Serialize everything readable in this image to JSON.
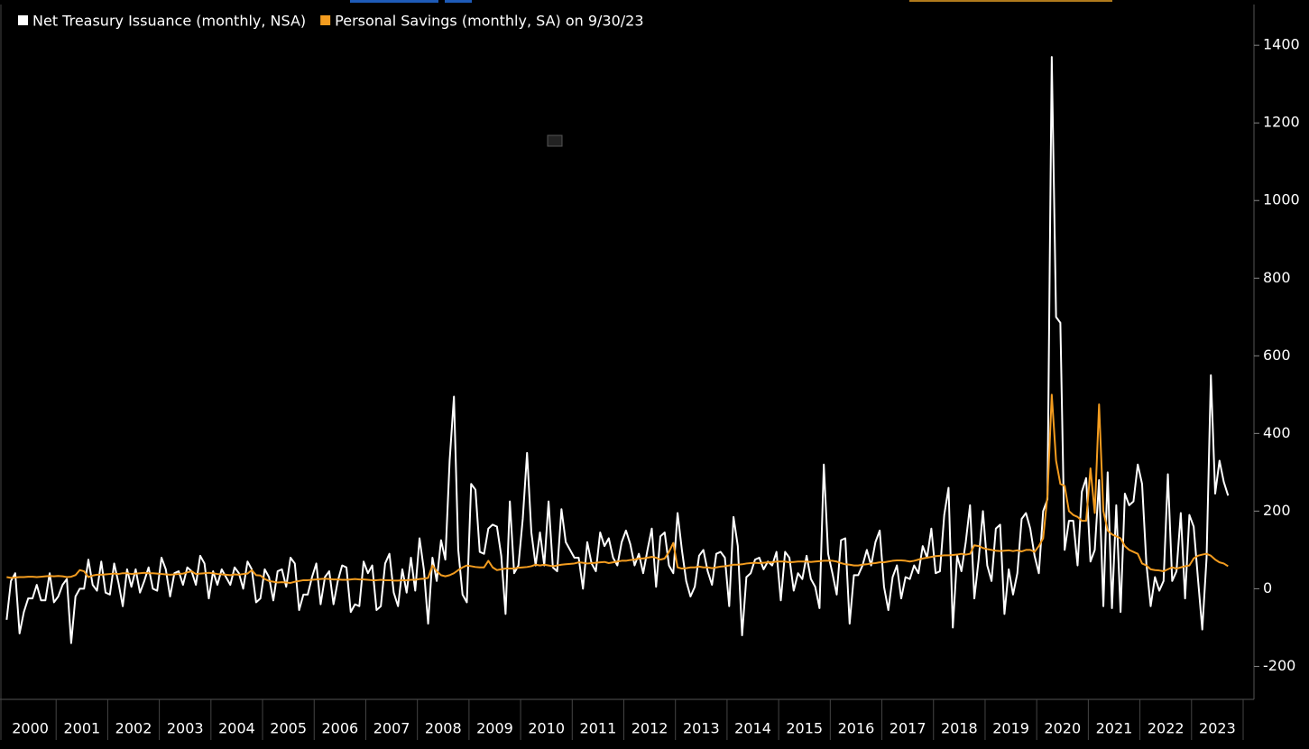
{
  "chart_data": {
    "type": "line",
    "categories": [
      "2000",
      null,
      null,
      null,
      null,
      null,
      null,
      null,
      null,
      null,
      null,
      null,
      "2001",
      null,
      null,
      null,
      null,
      null,
      null,
      null,
      null,
      null,
      null,
      null,
      "2002",
      null,
      null,
      null,
      null,
      null,
      null,
      null,
      null,
      null,
      null,
      null,
      "2003",
      null,
      null,
      null,
      null,
      null,
      null,
      null,
      null,
      null,
      null,
      null,
      "2004",
      null,
      null,
      null,
      null,
      null,
      null,
      null,
      null,
      null,
      null,
      null,
      "2005",
      null,
      null,
      null,
      null,
      null,
      null,
      null,
      null,
      null,
      null,
      null,
      "2006",
      null,
      null,
      null,
      null,
      null,
      null,
      null,
      null,
      null,
      null,
      null,
      "2007",
      null,
      null,
      null,
      null,
      null,
      null,
      null,
      null,
      null,
      null,
      null,
      "2008",
      null,
      null,
      null,
      null,
      null,
      null,
      null,
      null,
      null,
      null,
      null,
      "2009",
      null,
      null,
      null,
      null,
      null,
      null,
      null,
      null,
      null,
      null,
      null,
      "2010",
      null,
      null,
      null,
      null,
      null,
      null,
      null,
      null,
      null,
      null,
      null,
      "2011",
      null,
      null,
      null,
      null,
      null,
      null,
      null,
      null,
      null,
      null,
      null,
      "2012",
      null,
      null,
      null,
      null,
      null,
      null,
      null,
      null,
      null,
      null,
      null,
      "2013",
      null,
      null,
      null,
      null,
      null,
      null,
      null,
      null,
      null,
      null,
      null,
      "2014",
      null,
      null,
      null,
      null,
      null,
      null,
      null,
      null,
      null,
      null,
      null,
      "2015",
      null,
      null,
      null,
      null,
      null,
      null,
      null,
      null,
      null,
      null,
      null,
      "2016",
      null,
      null,
      null,
      null,
      null,
      null,
      null,
      null,
      null,
      null,
      null,
      "2017",
      null,
      null,
      null,
      null,
      null,
      null,
      null,
      null,
      null,
      null,
      null,
      "2018",
      null,
      null,
      null,
      null,
      null,
      null,
      null,
      null,
      null,
      null,
      null,
      "2019",
      null,
      null,
      null,
      null,
      null,
      null,
      null,
      null,
      null,
      null,
      null,
      "2020",
      null,
      null,
      null,
      null,
      null,
      null,
      null,
      null,
      null,
      null,
      null,
      "2021",
      null,
      null,
      null,
      null,
      null,
      null,
      null,
      null,
      null,
      null,
      null,
      "2022",
      null,
      null,
      null,
      null,
      null,
      null,
      null,
      null,
      null,
      null,
      null,
      "2023",
      null,
      null,
      null,
      null,
      null,
      null,
      null,
      null
    ],
    "series": [
      {
        "name": "Net Treasury Issuance (monthly, NSA)",
        "color": "#ffffff",
        "values": [
          -80,
          20,
          40,
          -115,
          -60,
          -25,
          -25,
          10,
          -30,
          -30,
          40,
          -35,
          -20,
          10,
          25,
          -140,
          -20,
          0,
          0,
          75,
          10,
          -5,
          70,
          -10,
          -15,
          65,
          15,
          -45,
          50,
          5,
          50,
          -10,
          20,
          55,
          0,
          -5,
          80,
          50,
          -20,
          40,
          45,
          10,
          55,
          45,
          10,
          85,
          65,
          -25,
          45,
          10,
          50,
          30,
          10,
          55,
          40,
          0,
          70,
          50,
          -35,
          -25,
          50,
          30,
          -30,
          45,
          50,
          5,
          80,
          65,
          -55,
          -15,
          -15,
          30,
          65,
          -40,
          30,
          45,
          -40,
          20,
          60,
          55,
          -60,
          -40,
          -45,
          70,
          40,
          60,
          -55,
          -45,
          65,
          90,
          -10,
          -45,
          50,
          -10,
          80,
          -5,
          130,
          50,
          -90,
          80,
          20,
          125,
          75,
          330,
          495,
          100,
          -15,
          -35,
          270,
          255,
          95,
          90,
          155,
          165,
          160,
          85,
          -65,
          225,
          40,
          60,
          180,
          350,
          145,
          60,
          145,
          60,
          225,
          55,
          45,
          205,
          120,
          100,
          80,
          80,
          0,
          120,
          65,
          45,
          145,
          110,
          130,
          80,
          60,
          120,
          150,
          115,
          60,
          90,
          40,
          100,
          155,
          5,
          135,
          145,
          60,
          40,
          195,
          100,
          20,
          -20,
          5,
          85,
          100,
          45,
          10,
          90,
          95,
          80,
          -45,
          185,
          110,
          -120,
          30,
          40,
          75,
          80,
          50,
          70,
          60,
          95,
          -30,
          95,
          80,
          -5,
          40,
          25,
          85,
          25,
          5,
          -50,
          320,
          90,
          40,
          -15,
          125,
          130,
          -90,
          35,
          35,
          60,
          100,
          60,
          120,
          150,
          5,
          -55,
          30,
          60,
          -25,
          30,
          25,
          60,
          40,
          110,
          80,
          155,
          40,
          45,
          190,
          260,
          -100,
          85,
          45,
          120,
          215,
          -25,
          75,
          200,
          60,
          20,
          155,
          165,
          -65,
          50,
          -15,
          40,
          180,
          195,
          155,
          85,
          40,
          200,
          230,
          1370,
          700,
          685,
          100,
          175,
          175,
          60,
          250,
          285,
          70,
          100,
          280,
          -45,
          300,
          -50,
          215,
          -60,
          245,
          215,
          225,
          320,
          270,
          65,
          -45,
          30,
          -5,
          20,
          295,
          20,
          45,
          195,
          -25,
          190,
          160,
          25,
          -105,
          80,
          550,
          245,
          330,
          275,
          240
        ]
      },
      {
        "name": "Personal Savings (monthly, SA) on 9/30/23",
        "color": "#f39c1f",
        "values": [
          30,
          28,
          29,
          30,
          30,
          31,
          31,
          30,
          31,
          32,
          33,
          32,
          33,
          32,
          30,
          31,
          35,
          48,
          45,
          30,
          34,
          36,
          36,
          37,
          38,
          39,
          38,
          40,
          40,
          38,
          39,
          40,
          41,
          40,
          40,
          39,
          38,
          37,
          36,
          37,
          38,
          39,
          42,
          45,
          38,
          39,
          40,
          41,
          40,
          38,
          37,
          36,
          35,
          37,
          36,
          38,
          39,
          48,
          35,
          34,
          25,
          20,
          18,
          16,
          17,
          16,
          15,
          18,
          20,
          22,
          22,
          23,
          24,
          25,
          26,
          25,
          24,
          24,
          23,
          23,
          24,
          25,
          24,
          24,
          23,
          22,
          22,
          23,
          22,
          22,
          21,
          21,
          22,
          22,
          23,
          23,
          25,
          26,
          28,
          60,
          45,
          35,
          32,
          35,
          40,
          48,
          55,
          60,
          58,
          56,
          55,
          55,
          72,
          55,
          48,
          50,
          52,
          52,
          52,
          54,
          55,
          56,
          58,
          62,
          60,
          62,
          60,
          58,
          60,
          62,
          63,
          64,
          65,
          68,
          67,
          65,
          66,
          67,
          68,
          69,
          66,
          68,
          70,
          72,
          72,
          74,
          75,
          78,
          78,
          80,
          82,
          80,
          75,
          78,
          95,
          118,
          55,
          52,
          53,
          55,
          55,
          57,
          55,
          55,
          53,
          55,
          57,
          58,
          60,
          62,
          62,
          63,
          65,
          66,
          67,
          66,
          67,
          68,
          68,
          70,
          70,
          70,
          68,
          69,
          70,
          70,
          70,
          69,
          70,
          71,
          72,
          72,
          72,
          70,
          66,
          63,
          62,
          60,
          60,
          62,
          63,
          65,
          66,
          68,
          68,
          70,
          72,
          73,
          73,
          72,
          70,
          72,
          75,
          78,
          80,
          82,
          84,
          85,
          86,
          86,
          87,
          88,
          90,
          88,
          90,
          112,
          110,
          105,
          102,
          100,
          98,
          97,
          98,
          99,
          97,
          99,
          96,
          100,
          100,
          95,
          110,
          130,
          240,
          500,
          330,
          270,
          265,
          200,
          190,
          185,
          175,
          175,
          310,
          195,
          475,
          200,
          150,
          140,
          135,
          130,
          110,
          100,
          95,
          90,
          65,
          60,
          50,
          48,
          47,
          45,
          50,
          55,
          52,
          55,
          58,
          60,
          78,
          85,
          88,
          90,
          85,
          75,
          68,
          65,
          58
        ]
      }
    ],
    "ylim": [
      -285,
      1505
    ],
    "yticks": [
      -200,
      0,
      200,
      400,
      600,
      800,
      1000,
      1200,
      1400
    ],
    "y_axis_side": "right",
    "legend": "top-left",
    "grid": false
  }
}
